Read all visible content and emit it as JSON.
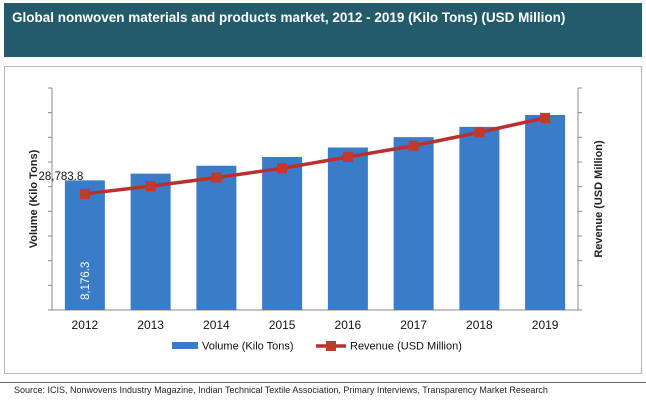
{
  "title": "Global nonwoven materials and products market, 2012 - 2019 (Kilo Tons) (USD Million)",
  "source": "Source: ICIS, Nonwovens Industry Magazine, Indian Technical Textile Association, Primary Interviews, Transparency Market Research",
  "colors": {
    "header_bg": "#245b6b",
    "bar": "#3a7cc8",
    "line": "#b8312f",
    "marker": "#c0392b"
  },
  "chart_data": {
    "type": "bar",
    "categories": [
      "2012",
      "2013",
      "2014",
      "2015",
      "2016",
      "2017",
      "2018",
      "2019"
    ],
    "series": [
      {
        "name": "Volume (Kilo Tons)",
        "type": "bar",
        "axis": "left",
        "values": [
          8176.3,
          8600,
          9100,
          9650,
          10250,
          10900,
          11550,
          12300
        ]
      },
      {
        "name": "Revenue (USD Million)",
        "type": "line",
        "axis": "right",
        "values": [
          28783.8,
          30700,
          32800,
          35100,
          37900,
          40700,
          44000,
          47600
        ]
      }
    ],
    "data_labels": {
      "bar_first": "8,176.3",
      "line_first": "28,783.8"
    },
    "ylabel_left": "Volume (Kilo Tons)",
    "ylabel_right": "Revenue (USD Million)",
    "ylim_left": [
      0,
      14000
    ],
    "ylim_right": [
      0,
      55000
    ],
    "legend_position": "bottom",
    "grid": false
  }
}
